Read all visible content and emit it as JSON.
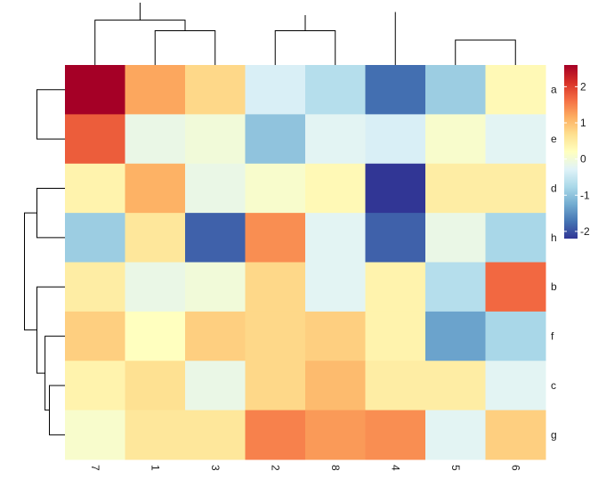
{
  "chart_data": {
    "type": "heatmap",
    "title": "",
    "xlabel": "",
    "ylabel": "",
    "columns": [
      "7",
      "1",
      "3",
      "2",
      "8",
      "4",
      "5",
      "6"
    ],
    "rows": [
      "a",
      "e",
      "d",
      "h",
      "b",
      "f",
      "c",
      "g"
    ],
    "values": [
      [
        2.6,
        1.1,
        0.6,
        -0.5,
        -0.8,
        -1.8,
        -1.0,
        0.1
      ],
      [
        1.7,
        -0.3,
        -0.2,
        -1.1,
        -0.4,
        -0.5,
        -0.1,
        -0.4
      ],
      [
        0.2,
        1.0,
        -0.3,
        -0.1,
        0.1,
        -2.2,
        0.3,
        0.3
      ],
      [
        -1.0,
        0.4,
        -1.9,
        1.3,
        -0.4,
        -1.9,
        -0.3,
        -0.9
      ],
      [
        0.3,
        -0.3,
        -0.2,
        0.6,
        -0.4,
        0.2,
        -0.8,
        1.6
      ],
      [
        0.7,
        0.0,
        0.7,
        0.6,
        0.7,
        0.2,
        -1.4,
        -0.9
      ],
      [
        0.2,
        0.5,
        -0.3,
        0.6,
        0.9,
        0.3,
        0.3,
        -0.4
      ],
      [
        -0.1,
        0.4,
        0.4,
        1.4,
        1.2,
        1.3,
        -0.4,
        0.7
      ]
    ],
    "legend": {
      "position": "right",
      "ticks": [
        2,
        1,
        0,
        -1,
        -2
      ],
      "range": [
        -2.2,
        2.6
      ],
      "colors": [
        "#313695",
        "#4575b4",
        "#74add1",
        "#abd9e9",
        "#e0f3f8",
        "#ffffbf",
        "#fee090",
        "#fdae61",
        "#f46d43",
        "#d73027",
        "#a50026"
      ]
    },
    "row_dendrogram": {
      "merges": [
        [
          [
            "e",
            "a"
          ],
          0.45
        ],
        [
          [
            "d",
            "h"
          ],
          0.45
        ],
        [
          [
            "c",
            "g"
          ],
          0.25
        ],
        [
          [
            "f",
            "c+g"
          ],
          0.32
        ],
        [
          [
            "b",
            "f+c+g"
          ],
          0.45
        ],
        [
          [
            "d+h",
            "b+f+c+g"
          ],
          0.65
        ],
        [
          [
            "a+e",
            "d+h+b+f+c+g"
          ],
          1.0
        ]
      ]
    },
    "col_dendrogram": {
      "merges": [
        [
          [
            "1",
            "3"
          ],
          0.55
        ],
        [
          [
            "7",
            "1+3"
          ],
          0.72
        ],
        [
          [
            "2",
            "8"
          ],
          0.55
        ],
        [
          [
            "4",
            "5+6"
          ],
          0.85
        ],
        [
          [
            "5",
            "6"
          ],
          0.4
        ],
        [
          [
            "2+8",
            "4+5+6"
          ],
          0.8
        ],
        [
          [
            "7+1+3",
            "2+8+4+5+6"
          ],
          1.0
        ]
      ]
    }
  }
}
